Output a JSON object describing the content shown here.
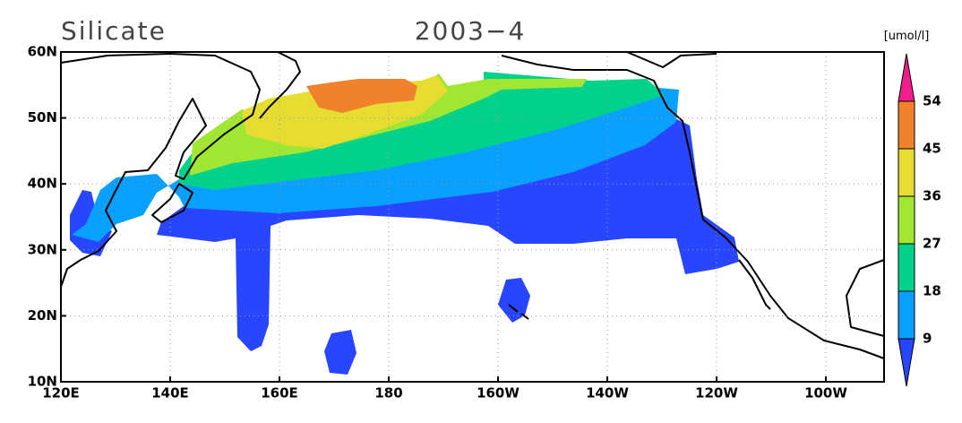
{
  "header": {
    "title": "Silicate",
    "date": "2003−4"
  },
  "map": {
    "xticks": [
      "120E",
      "140E",
      "160E",
      "180",
      "160W",
      "140W",
      "120W",
      "100W"
    ],
    "yticks": [
      "60N",
      "50N",
      "40N",
      "30N",
      "20N",
      "10N"
    ]
  },
  "colorbar": {
    "unit": "[umol/l]",
    "levels": [
      9,
      18,
      27,
      36,
      45,
      54
    ],
    "colors": [
      "#2846ff",
      "#0aa0ff",
      "#00d28c",
      "#a0e632",
      "#e6dc32",
      "#f0822d",
      "#f01e8c"
    ]
  }
}
